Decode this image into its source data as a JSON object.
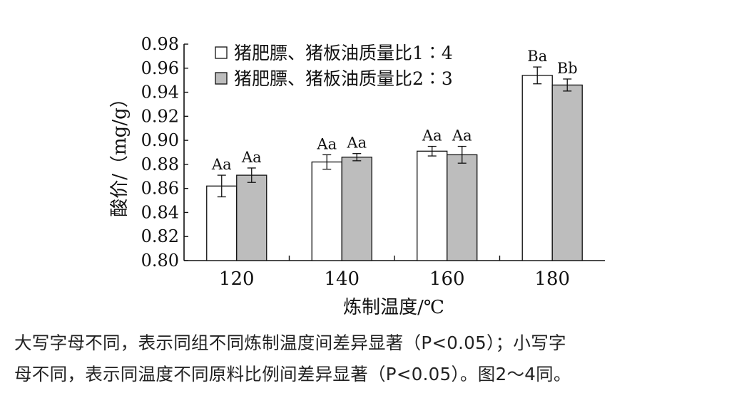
{
  "chart_data": {
    "type": "bar",
    "categories": [
      "120",
      "140",
      "160",
      "180"
    ],
    "series": [
      {
        "name": "猪肥膘、猪板油质量比1∶4",
        "color": "#ffffff",
        "values": [
          0.862,
          0.882,
          0.891,
          0.954
        ],
        "errors": [
          0.009,
          0.006,
          0.004,
          0.007
        ],
        "labels": [
          "Aa",
          "Aa",
          "Aa",
          "Ba"
        ]
      },
      {
        "name": "猪肥膘、猪板油质量比2∶3",
        "color": "#bdbdbd",
        "values": [
          0.871,
          0.886,
          0.888,
          0.946
        ],
        "errors": [
          0.006,
          0.003,
          0.007,
          0.005
        ],
        "labels": [
          "Aa",
          "Aa",
          "Aa",
          "Bb"
        ]
      }
    ],
    "ylim": [
      0.8,
      0.98
    ],
    "yticks": [
      "0.80",
      "0.82",
      "0.84",
      "0.86",
      "0.88",
      "0.90",
      "0.92",
      "0.94",
      "0.96",
      "0.98"
    ],
    "xlabel": "炼制温度/℃",
    "ylabel": "酸价/（mg/g）",
    "legend_position": "top-left",
    "grid": false
  },
  "caption": {
    "line1": "大写字母不同，表示同组不同炼制温度间差异显著（P<0.05）；小写字",
    "line2": "母不同，表示同温度不同原料比例间差异显著（P<0.05）。图2～4同。"
  }
}
